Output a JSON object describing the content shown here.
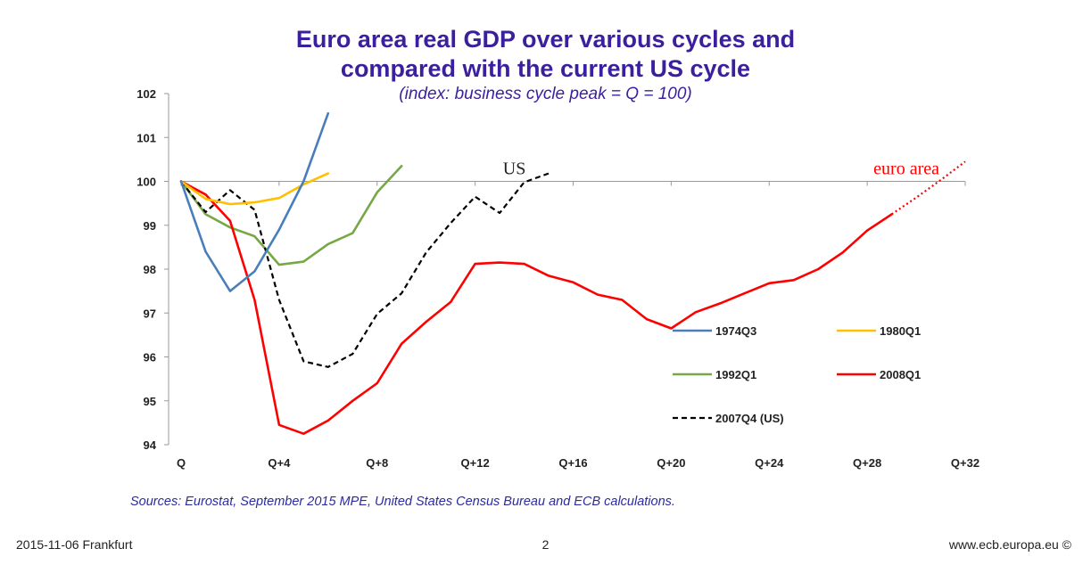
{
  "title_line1": "Euro area real GDP over various cycles and",
  "title_line2": "compared with the current US cycle",
  "subtitle": "(index: business cycle peak = Q = 100)",
  "source": "Sources: Eurostat, September 2015 MPE, United States Census Bureau and ECB calculations.",
  "footer": {
    "left": "2015-11-06 Frankfurt",
    "page": "2",
    "right": "www.ecb.europa.eu ©"
  },
  "chart_data": {
    "type": "line",
    "title": "Euro area real GDP over various cycles and compared with the current US cycle",
    "subtitle": "(index: business cycle peak = Q = 100)",
    "xlim": [
      0,
      32
    ],
    "ylim": [
      94,
      102
    ],
    "x_ticks": [
      0,
      4,
      8,
      12,
      16,
      20,
      24,
      28,
      32
    ],
    "x_tick_labels": [
      "Q",
      "Q+4",
      "Q+8",
      "Q+12",
      "Q+16",
      "Q+20",
      "Q+24",
      "Q+28",
      "Q+32"
    ],
    "y_ticks": [
      94,
      95,
      96,
      97,
      98,
      99,
      100,
      101,
      102
    ],
    "y_tick_labels": [
      "94",
      "95",
      "96",
      "97",
      "98",
      "99",
      "100",
      "101",
      "102"
    ],
    "reference_line": 100,
    "series": [
      {
        "name": "1974Q3",
        "color": "#4a7ebb",
        "dash": "solid",
        "x": [
          0,
          1,
          2,
          3,
          4,
          5,
          6
        ],
        "values": [
          100,
          98.4,
          97.5,
          97.95,
          98.9,
          100.0,
          101.55
        ]
      },
      {
        "name": "1980Q1",
        "color": "#ffc000",
        "dash": "solid",
        "x": [
          0,
          1,
          2,
          3,
          4,
          5,
          6
        ],
        "values": [
          100,
          99.6,
          99.48,
          99.52,
          99.62,
          99.93,
          100.18
        ]
      },
      {
        "name": "1992Q1",
        "color": "#77a845",
        "dash": "solid",
        "x": [
          0,
          1,
          2,
          3,
          4,
          5,
          6,
          7,
          8,
          9
        ],
        "values": [
          100,
          99.25,
          98.95,
          98.75,
          98.1,
          98.17,
          98.57,
          98.82,
          99.75,
          100.35
        ]
      },
      {
        "name": "2008Q1",
        "color": "#ff0000",
        "dash": "solid",
        "x": [
          0,
          1,
          2,
          3,
          4,
          5,
          6,
          7,
          8,
          9,
          10,
          11,
          12,
          13,
          14,
          15,
          16,
          17,
          18,
          19,
          20,
          21,
          22,
          23,
          24,
          25,
          26,
          27,
          28,
          29
        ],
        "values": [
          100,
          99.7,
          99.1,
          97.3,
          94.45,
          94.25,
          94.55,
          95.0,
          95.4,
          96.3,
          96.8,
          97.25,
          98.12,
          98.15,
          98.12,
          97.85,
          97.7,
          97.42,
          97.3,
          96.86,
          96.65,
          97.02,
          97.22,
          97.45,
          97.68,
          97.75,
          98.0,
          98.38,
          98.88,
          99.25
        ]
      },
      {
        "name": "2007Q4 (US)",
        "color": "#000000",
        "dash": "dashed",
        "x": [
          0,
          1,
          2,
          3,
          4,
          5,
          6,
          7,
          8,
          9,
          10,
          11,
          12,
          13,
          14,
          15
        ],
        "values": [
          100,
          99.3,
          99.8,
          99.35,
          97.3,
          95.9,
          95.77,
          96.07,
          96.98,
          97.45,
          98.38,
          99.05,
          99.65,
          99.28,
          99.98,
          100.18
        ]
      }
    ],
    "projection": {
      "name": "euro area projection",
      "color": "#ff0000",
      "dash": "dotted",
      "x": [
        29,
        30,
        31,
        32
      ],
      "values": [
        99.25,
        99.63,
        100.03,
        100.45
      ]
    },
    "annotations": [
      {
        "text": "US",
        "x": 13.6,
        "y": 100.12,
        "color": "#222222"
      },
      {
        "text": "euro area",
        "x": 29.6,
        "y": 100.12,
        "color": "#ff0000"
      }
    ],
    "legend": [
      {
        "label": "1974Q3",
        "color": "#4a7ebb",
        "dash": "solid"
      },
      {
        "label": "1980Q1",
        "color": "#ffc000",
        "dash": "solid"
      },
      {
        "label": "1992Q1",
        "color": "#77a845",
        "dash": "solid"
      },
      {
        "label": "2008Q1",
        "color": "#ff0000",
        "dash": "solid"
      },
      {
        "label": "2007Q4 (US)",
        "color": "#000000",
        "dash": "dashed"
      }
    ],
    "legend_position": "bottom-right"
  }
}
